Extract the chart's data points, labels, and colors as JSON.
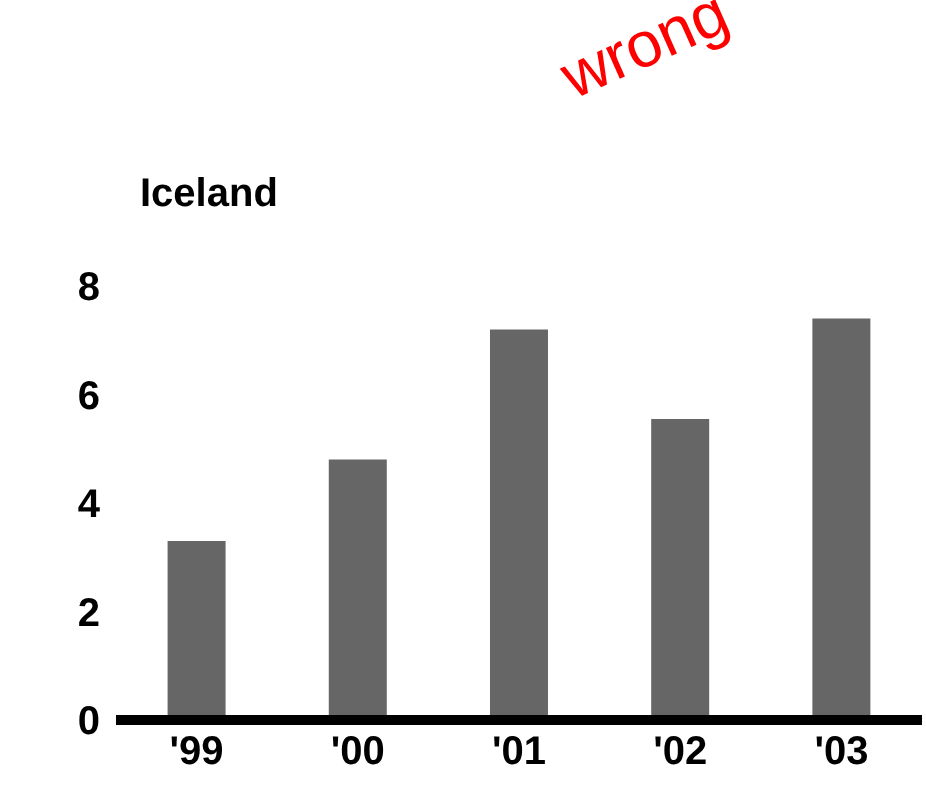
{
  "chart_data": {
    "type": "bar",
    "title": "Iceland",
    "annotations": [
      "wrong"
    ],
    "categories": [
      "'99",
      "'00",
      "'01",
      "'02",
      "'03"
    ],
    "values": [
      3.3,
      4.8,
      7.2,
      5.55,
      7.4
    ],
    "color": "#666666",
    "ylim": [
      0,
      8
    ],
    "yticks": [
      0,
      2,
      4,
      6,
      8
    ]
  }
}
